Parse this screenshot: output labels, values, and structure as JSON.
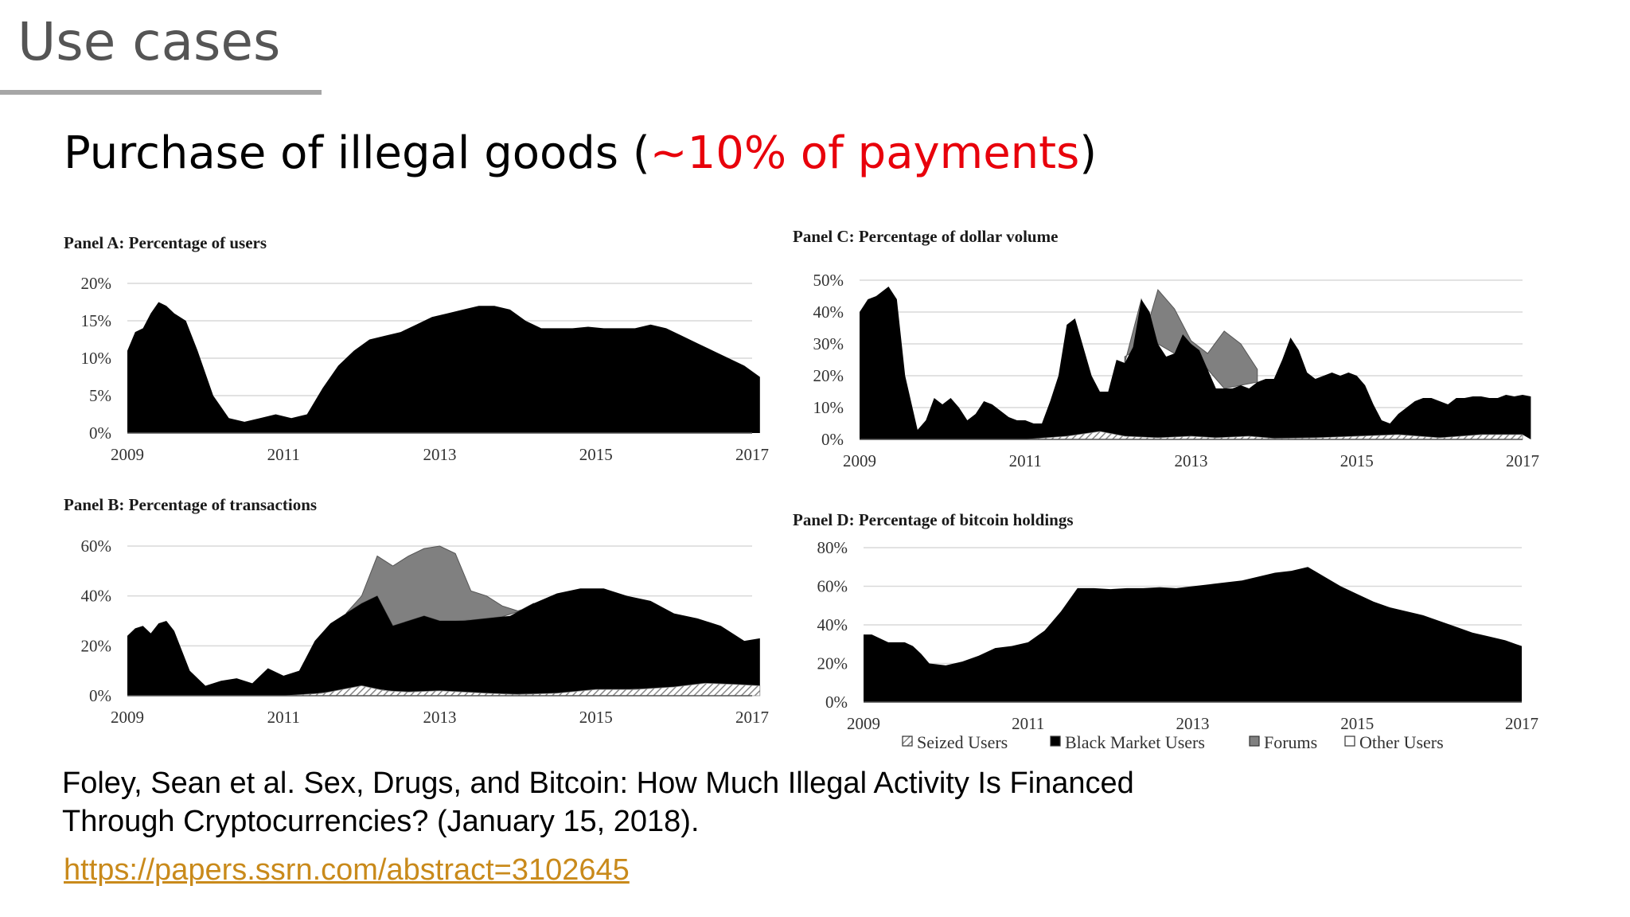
{
  "slide": {
    "title": "Use cases",
    "subtitle_prefix": "Purchase of illegal goods (",
    "subtitle_highlight": "~10%  of payments",
    "subtitle_suffix": ")",
    "highlight_color": "#e8000b"
  },
  "citation": {
    "line1": "Foley, Sean et al. Sex, Drugs, and Bitcoin: How Much Illegal Activity Is Financed",
    "line2": "Through Cryptocurrencies? (January 15, 2018).",
    "link": "https://papers.ssrn.com/abstract=3102645",
    "link_color": "#c98a1b"
  },
  "legend": [
    {
      "label": "Seized Users",
      "swatch": "hatched"
    },
    {
      "label": "Black Market Users",
      "swatch": "#000000"
    },
    {
      "label": "Forums",
      "swatch": "#808080"
    },
    {
      "label": "Other Users",
      "swatch": "#ffffff"
    }
  ],
  "chart_data": [
    {
      "id": "A",
      "type": "area",
      "title": "Panel A: Percentage of users",
      "x_ticks": [
        "2009",
        "2011",
        "2013",
        "2015",
        "2017"
      ],
      "y_ticks": [
        "20%",
        "15%",
        "10%",
        "5%",
        "0%"
      ],
      "xlim": [
        2009,
        2017
      ],
      "ylim": [
        0,
        20
      ],
      "series": [
        {
          "name": "Black Market Users",
          "color": "#000000",
          "x": [
            2009.0,
            2009.1,
            2009.2,
            2009.3,
            2009.4,
            2009.5,
            2009.6,
            2009.75,
            2009.9,
            2010.1,
            2010.3,
            2010.5,
            2010.7,
            2010.9,
            2011.1,
            2011.3,
            2011.5,
            2011.7,
            2011.9,
            2012.1,
            2012.3,
            2012.5,
            2012.7,
            2012.9,
            2013.1,
            2013.3,
            2013.5,
            2013.7,
            2013.9,
            2014.1,
            2014.3,
            2014.5,
            2014.7,
            2014.9,
            2015.1,
            2015.3,
            2015.5,
            2015.7,
            2015.9,
            2016.1,
            2016.3,
            2016.5,
            2016.7,
            2016.9,
            2017.1
          ],
          "values": [
            11,
            13.5,
            14,
            16,
            17.5,
            17,
            16,
            15,
            11,
            5,
            2,
            1.5,
            2,
            2.5,
            2,
            2.5,
            6,
            9,
            11,
            12.5,
            13,
            13.5,
            14.5,
            15.5,
            16,
            16.5,
            17,
            17,
            16.5,
            15,
            14,
            14,
            14,
            14.2,
            14,
            14,
            14,
            14.5,
            14,
            13,
            12,
            11,
            10,
            9,
            7.5
          ]
        }
      ]
    },
    {
      "id": "B",
      "type": "area",
      "title": "Panel B: Percentage of transactions",
      "x_ticks": [
        "2009",
        "2011",
        "2013",
        "2015",
        "2017"
      ],
      "y_ticks": [
        "60%",
        "40%",
        "20%",
        "0%"
      ],
      "xlim": [
        2009,
        2017
      ],
      "ylim": [
        0,
        60
      ],
      "series": [
        {
          "name": "Seized Users",
          "color": "hatched",
          "x": [
            2009.0,
            2011.0,
            2011.5,
            2012.0,
            2012.3,
            2012.6,
            2013.0,
            2013.3,
            2013.6,
            2014.0,
            2014.5,
            2015.0,
            2015.5,
            2016.0,
            2016.4,
            2016.8,
            2017.1
          ],
          "values": [
            0,
            0,
            1,
            4,
            2,
            1.5,
            2,
            1.5,
            1,
            0.5,
            1,
            2.5,
            2.5,
            3.5,
            5,
            4.5,
            4
          ]
        },
        {
          "name": "Black Market Users",
          "color": "#000000",
          "x": [
            2009.0,
            2009.1,
            2009.2,
            2009.3,
            2009.4,
            2009.5,
            2009.6,
            2009.8,
            2010.0,
            2010.2,
            2010.4,
            2010.6,
            2010.8,
            2011.0,
            2011.2,
            2011.4,
            2011.6,
            2011.8,
            2012.0,
            2012.2,
            2012.4,
            2012.6,
            2012.8,
            2013.0,
            2013.3,
            2013.6,
            2013.9,
            2014.2,
            2014.5,
            2014.8,
            2015.1,
            2015.4,
            2015.7,
            2016.0,
            2016.3,
            2016.6,
            2016.9,
            2017.1
          ],
          "values": [
            24,
            27,
            28,
            25,
            29,
            30,
            26,
            10,
            4,
            6,
            7,
            5,
            11,
            8,
            10,
            22,
            29,
            33,
            37,
            40,
            28,
            30,
            32,
            30,
            30,
            31,
            32,
            37,
            41,
            43,
            43,
            40,
            38,
            33,
            31,
            28,
            22,
            23
          ]
        },
        {
          "name": "Forums",
          "color": "#808080",
          "x": [
            2011.8,
            2012.0,
            2012.2,
            2012.4,
            2012.6,
            2012.8,
            2013.0,
            2013.2,
            2013.4,
            2013.6,
            2013.8,
            2014.0,
            2014.2
          ],
          "values": [
            33,
            40,
            56,
            52,
            56,
            59,
            60,
            57,
            42,
            40,
            36,
            34,
            36
          ]
        }
      ]
    },
    {
      "id": "C",
      "type": "area",
      "title": "Panel C: Percentage of dollar volume",
      "x_ticks": [
        "2009",
        "2011",
        "2013",
        "2015",
        "2017"
      ],
      "y_ticks": [
        "50%",
        "40%",
        "30%",
        "20%",
        "10%",
        "0%"
      ],
      "xlim": [
        2009,
        2017
      ],
      "ylim": [
        0,
        50
      ],
      "series": [
        {
          "name": "Seized Users",
          "color": "hatched",
          "x": [
            2009.0,
            2011.0,
            2011.5,
            2011.9,
            2012.2,
            2012.6,
            2013.0,
            2013.3,
            2013.7,
            2014.0,
            2014.5,
            2015.0,
            2015.5,
            2016.0,
            2016.5,
            2017.0
          ],
          "values": [
            0,
            0,
            1,
            2.5,
            1,
            0.5,
            1,
            0.5,
            1,
            0.3,
            0.5,
            1,
            1.5,
            0.5,
            1.5,
            1.5
          ]
        },
        {
          "name": "Black Market Users",
          "color": "#000000",
          "x": [
            2009.0,
            2009.1,
            2009.2,
            2009.35,
            2009.45,
            2009.55,
            2009.7,
            2009.8,
            2009.9,
            2010.0,
            2010.1,
            2010.2,
            2010.3,
            2010.4,
            2010.5,
            2010.6,
            2010.7,
            2010.8,
            2010.9,
            2011.0,
            2011.1,
            2011.2,
            2011.3,
            2011.4,
            2011.5,
            2011.6,
            2011.7,
            2011.8,
            2011.9,
            2012.0,
            2012.1,
            2012.2,
            2012.3,
            2012.4,
            2012.5,
            2012.6,
            2012.7,
            2012.8,
            2012.9,
            2013.0,
            2013.1,
            2013.2,
            2013.3,
            2013.4,
            2013.5,
            2013.6,
            2013.7,
            2013.8,
            2013.9,
            2014.0,
            2014.1,
            2014.2,
            2014.3,
            2014.4,
            2014.5,
            2014.6,
            2014.7,
            2014.8,
            2014.9,
            2015.0,
            2015.1,
            2015.2,
            2015.3,
            2015.4,
            2015.5,
            2015.6,
            2015.7,
            2015.8,
            2015.9,
            2016.0,
            2016.1,
            2016.2,
            2016.3,
            2016.4,
            2016.5,
            2016.6,
            2016.7,
            2016.8,
            2016.9,
            2017.0,
            2017.1
          ],
          "values": [
            40,
            44,
            45,
            48,
            44,
            20,
            3,
            6,
            13,
            11,
            13,
            10,
            6,
            8,
            12,
            11,
            9,
            7,
            6,
            6,
            5,
            5,
            12,
            20,
            36,
            38,
            29,
            20,
            15,
            15,
            25,
            24,
            29,
            44,
            40,
            30,
            26,
            27,
            33,
            30,
            28,
            22,
            16,
            16,
            16,
            17,
            16,
            18,
            19,
            19,
            25,
            32,
            28,
            21,
            19,
            20,
            21,
            20,
            21,
            20,
            17,
            11,
            6,
            5,
            8,
            10,
            12,
            13,
            13,
            12,
            11,
            13,
            13,
            13.5,
            13.5,
            13,
            13,
            14,
            13.5,
            14,
            13.5
          ]
        },
        {
          "name": "Forums",
          "color": "#808080",
          "x": [
            2012.2,
            2012.4,
            2012.6,
            2012.8,
            2013.0,
            2013.2,
            2013.4,
            2013.6,
            2013.8
          ],
          "values": [
            26,
            29,
            47,
            41,
            31,
            27,
            34,
            30,
            22
          ]
        }
      ]
    },
    {
      "id": "D",
      "type": "area",
      "title": "Panel D: Percentage of bitcoin holdings",
      "x_ticks": [
        "2009",
        "2011",
        "2013",
        "2015",
        "2017"
      ],
      "y_ticks": [
        "80%",
        "60%",
        "40%",
        "20%",
        "0%"
      ],
      "xlim": [
        2009,
        2017
      ],
      "ylim": [
        0,
        80
      ],
      "series": [
        {
          "name": "Black Market Users",
          "color": "#000000",
          "x": [
            2009.0,
            2009.1,
            2009.3,
            2009.5,
            2009.6,
            2009.7,
            2009.8,
            2010.0,
            2010.2,
            2010.4,
            2010.6,
            2010.8,
            2011.0,
            2011.2,
            2011.4,
            2011.6,
            2011.8,
            2012.0,
            2012.2,
            2012.4,
            2012.6,
            2012.8,
            2013.0,
            2013.2,
            2013.4,
            2013.6,
            2013.8,
            2014.0,
            2014.2,
            2014.4,
            2014.6,
            2014.8,
            2015.0,
            2015.2,
            2015.4,
            2015.6,
            2015.8,
            2016.0,
            2016.2,
            2016.4,
            2016.6,
            2016.8,
            2017.0
          ],
          "values": [
            35,
            35,
            31,
            31,
            29,
            25,
            20,
            19,
            21,
            24,
            28,
            29,
            31,
            37,
            47,
            59,
            59,
            58.5,
            59,
            59,
            59.5,
            59,
            60,
            61,
            62,
            63,
            65,
            67,
            68,
            70,
            65,
            60,
            56,
            52,
            49,
            47,
            45,
            42,
            39,
            36,
            34,
            32,
            29
          ]
        }
      ]
    }
  ]
}
